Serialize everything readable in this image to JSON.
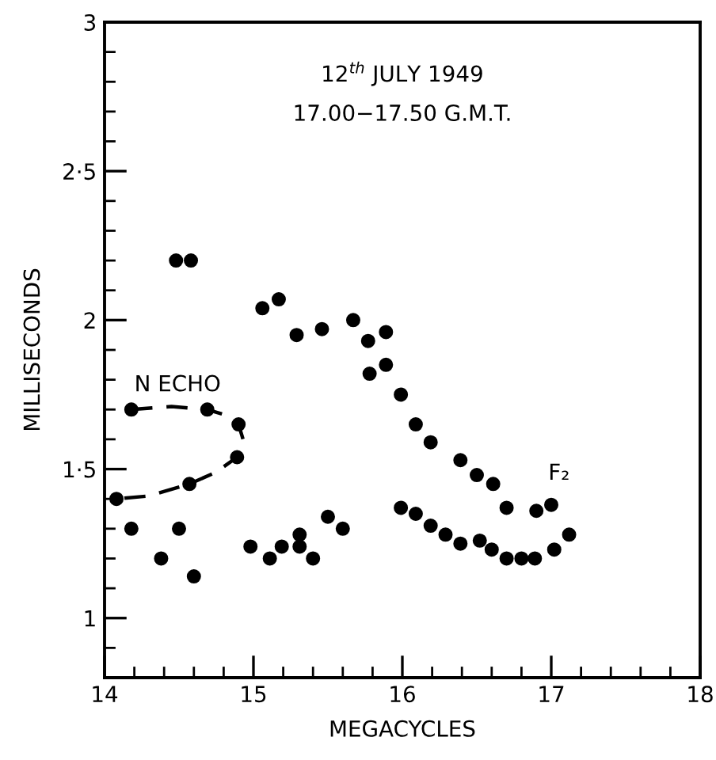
{
  "chart_data": {
    "type": "scatter",
    "title": "12$^{th}$ JULY 1949",
    "subtitle": "17.00−17.50 G.M.T.",
    "xlabel": "MEGACYCLES",
    "ylabel": "MILLISECONDS",
    "xlim": [
      14,
      18
    ],
    "ylim": [
      0.8,
      3
    ],
    "xticks": [
      14,
      {
        "value": 14.2,
        "label": null
      },
      {
        "value": 14.4,
        "label": null
      },
      {
        "value": 14.6,
        "label": null
      },
      {
        "value": 14.8,
        "label": null
      },
      15,
      {
        "value": 15.2,
        "label": null
      },
      {
        "value": 15.4,
        "label": null
      },
      {
        "value": 15.6,
        "label": null
      },
      {
        "value": 15.8,
        "label": null
      },
      16,
      {
        "value": 16.2,
        "label": null
      },
      {
        "value": 16.4,
        "label": null
      },
      {
        "value": 16.6,
        "label": null
      },
      {
        "value": 16.8,
        "label": null
      },
      17,
      {
        "value": 17.2,
        "label": null
      },
      {
        "value": 17.4,
        "label": null
      },
      {
        "value": 17.6,
        "label": null
      },
      {
        "value": 17.8,
        "label": null
      },
      18
    ],
    "yticks": [
      {
        "value": 0.9,
        "label": null
      },
      1,
      {
        "value": 1.1,
        "label": null
      },
      {
        "value": 1.2,
        "label": null
      },
      {
        "value": 1.3,
        "label": null
      },
      {
        "value": 1.4,
        "label": null
      },
      {
        "value": 1.5,
        "label": "1·5"
      },
      {
        "value": 1.6,
        "label": null
      },
      {
        "value": 1.7,
        "label": null
      },
      {
        "value": 1.8,
        "label": null
      },
      {
        "value": 1.9,
        "label": null
      },
      2,
      {
        "value": 2.1,
        "label": null
      },
      {
        "value": 2.2,
        "label": null
      },
      {
        "value": 2.3,
        "label": null
      },
      {
        "value": 2.4,
        "label": null
      },
      {
        "value": 2.5,
        "label": "2·5"
      },
      {
        "value": 2.6,
        "label": null
      },
      {
        "value": 2.7,
        "label": null
      },
      {
        "value": 2.8,
        "label": null
      },
      {
        "value": 2.9,
        "label": null
      },
      3
    ],
    "grid": false,
    "legend": false,
    "marker": "circle",
    "series": [
      {
        "color": "#000000",
        "x": [
          14.48,
          14.58,
          15.06,
          15.17,
          15.29,
          15.46,
          15.67,
          15.77,
          15.89,
          15.78,
          15.89,
          15.99,
          16.09,
          16.19,
          16.39,
          16.5,
          16.61,
          16.7,
          16.9,
          17.0
        ],
        "values": [
          2.2,
          2.2,
          2.04,
          2.07,
          1.95,
          1.97,
          2.0,
          1.93,
          1.96,
          1.82,
          1.85,
          1.75,
          1.65,
          1.59,
          1.53,
          1.48,
          1.45,
          1.37,
          1.36,
          1.38
        ]
      },
      {
        "color": "#000000",
        "x": [
          15.99,
          16.09,
          16.19,
          16.29,
          16.39,
          16.52,
          16.6,
          16.7,
          16.8,
          16.89,
          17.02,
          17.12
        ],
        "values": [
          1.37,
          1.35,
          1.31,
          1.28,
          1.25,
          1.26,
          1.23,
          1.2,
          1.2,
          1.2,
          1.23,
          1.28
        ]
      },
      {
        "color": "#000000",
        "x": [
          14.18,
          14.69,
          14.9,
          14.89,
          14.57,
          14.08,
          14.18,
          14.38,
          14.5,
          14.6,
          14.98,
          15.11,
          15.19,
          15.31,
          15.31,
          15.4,
          15.5,
          15.6
        ],
        "values": [
          1.7,
          1.7,
          1.65,
          1.54,
          1.45,
          1.4,
          1.3,
          1.2,
          1.3,
          1.14,
          1.24,
          1.2,
          1.24,
          1.28,
          1.24,
          1.2,
          1.34,
          1.3
        ]
      },
      {
        "type": "line",
        "color": "#000000",
        "line_style": "dashed",
        "marker": "none",
        "x": [
          14.18,
          14.45,
          14.69,
          14.82,
          14.9,
          14.93,
          14.89,
          14.75,
          14.57,
          14.3,
          14.08
        ],
        "values": [
          1.7,
          1.71,
          1.7,
          1.68,
          1.65,
          1.6,
          1.54,
          1.49,
          1.45,
          1.41,
          1.4
        ]
      }
    ],
    "annotations": [
      "N ECHO",
      "F₂"
    ]
  }
}
